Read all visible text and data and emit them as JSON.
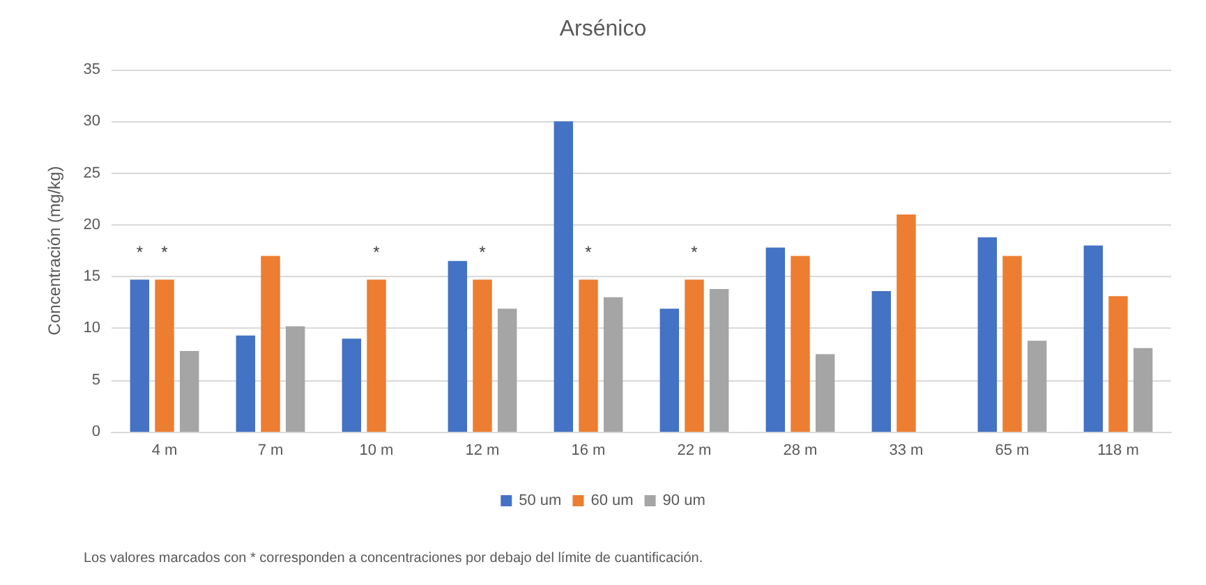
{
  "chart_data": {
    "type": "bar",
    "title": "Arsénico",
    "ylabel": "Concentración (mg/kg)",
    "categories": [
      "4 m",
      "7 m",
      "10 m",
      "12 m",
      "16 m",
      "22 m",
      "28 m",
      "33 m",
      "65 m",
      "118 m"
    ],
    "series": [
      {
        "name": "50 um",
        "color": "#4472c4",
        "values": [
          14.7,
          9.3,
          9,
          16.5,
          30,
          11.9,
          17.8,
          13.6,
          18.8,
          18
        ],
        "value_labels": [
          "*",
          null,
          null,
          null,
          null,
          null,
          null,
          null,
          null,
          null
        ]
      },
      {
        "name": "60 um",
        "color": "#ed7d31",
        "values": [
          14.7,
          17,
          14.7,
          14.7,
          14.7,
          14.7,
          17,
          21,
          17,
          13.1
        ],
        "value_labels": [
          "*",
          null,
          "*",
          "*",
          "*",
          "*",
          null,
          null,
          null,
          null
        ]
      },
      {
        "name": "90 um",
        "color": "#a5a5a5",
        "values": [
          7.8,
          10.2,
          null,
          11.9,
          13,
          13.8,
          7.5,
          null,
          8.8,
          8.1
        ]
      }
    ],
    "ylim": [
      0,
      35
    ],
    "yticks": [
      0,
      5,
      10,
      15,
      20,
      25,
      30,
      35
    ],
    "grid": "y",
    "legend": "bottom",
    "annotations": [
      "Los valores marcados con * corresponden a concentraciones por debajo del límite de cuantificación."
    ]
  }
}
